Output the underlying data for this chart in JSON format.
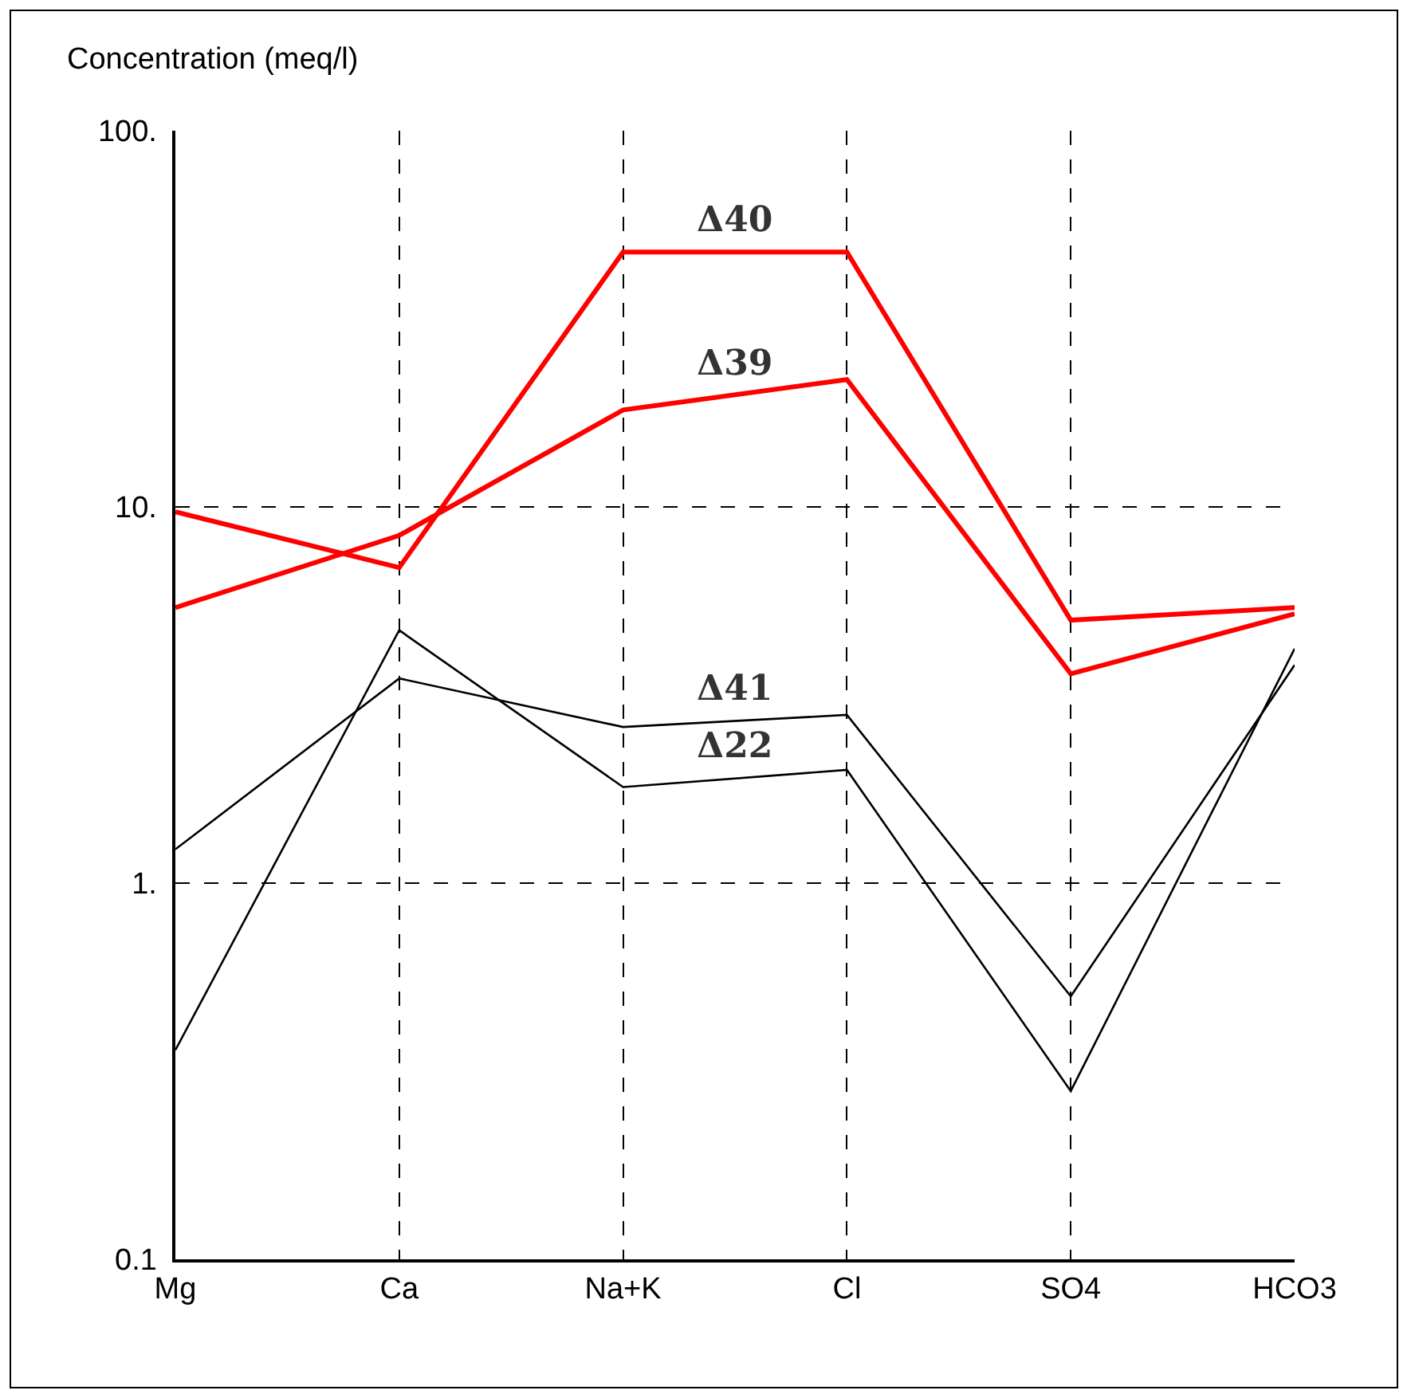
{
  "chart_data": {
    "type": "line",
    "ylabel": "Concentration (meq/l)",
    "categories": [
      "Mg",
      "Ca",
      "Na+K",
      "Cl",
      "SO4",
      "HCO3"
    ],
    "series": [
      {
        "name": "Δ40",
        "color": "#ff0000",
        "values": [
          9.7,
          6.9,
          47.6,
          47.6,
          5.0,
          5.4
        ]
      },
      {
        "name": "Δ39",
        "color": "#ff0000",
        "values": [
          5.4,
          8.4,
          18.1,
          21.8,
          3.6,
          5.2
        ]
      },
      {
        "name": "Δ41",
        "color": "#000000",
        "values": [
          1.23,
          3.5,
          2.6,
          2.8,
          0.5,
          3.8
        ]
      },
      {
        "name": "Δ22",
        "color": "#000000",
        "values": [
          0.36,
          4.7,
          1.8,
          2.0,
          0.28,
          4.2
        ]
      }
    ],
    "log": true,
    "ylim": [
      0.1,
      100
    ],
    "yticks": [
      {
        "value": 100,
        "label": "100."
      },
      {
        "value": 10,
        "label": "10."
      },
      {
        "value": 1,
        "label": "1."
      },
      0.1
    ],
    "grid": true,
    "legend": false,
    "marker": "none",
    "line_style": "solid"
  }
}
